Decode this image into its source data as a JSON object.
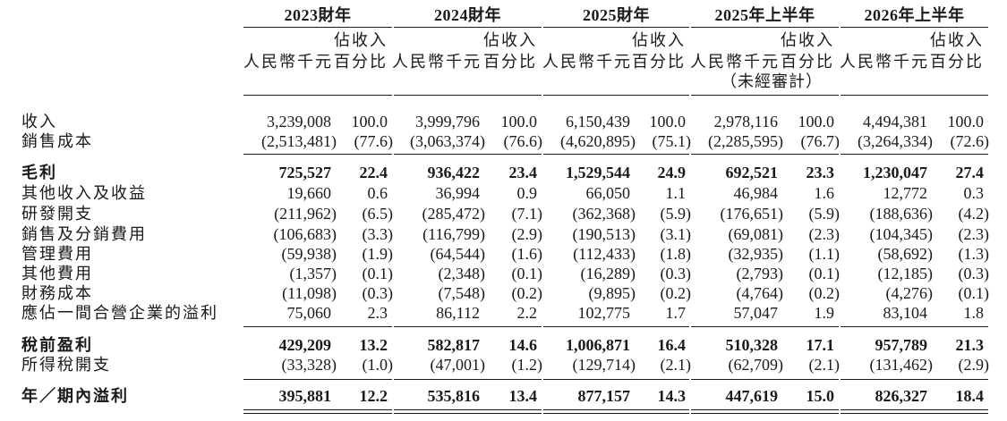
{
  "periods": [
    "2023財年",
    "2024財年",
    "2025財年",
    "2025年上半年",
    "2026年上半年"
  ],
  "col_headers": {
    "amount": "人民幣千元",
    "pct": "佔收入\n百分比",
    "unaudited": "（未經審計）"
  },
  "rows": [
    {
      "label": "收入",
      "bold": false,
      "values": [
        "3,239,008",
        "100.0",
        "3,999,796",
        "100.0",
        "6,150,439",
        "100.0",
        "2,978,116",
        "100.0",
        "4,494,381",
        "100.0"
      ]
    },
    {
      "label": "銷售成本",
      "bold": false,
      "values": [
        "(2,513,481)",
        "(77.6)",
        "(3,063,374)",
        "(76.6)",
        "(4,620,895)",
        "(75.1)",
        "(2,285,595)",
        "(76.7)",
        "(3,264,334)",
        "(72.6)"
      ]
    },
    {
      "label": "毛利",
      "bold": true,
      "values": [
        "725,527",
        "22.4",
        "936,422",
        "23.4",
        "1,529,544",
        "24.9",
        "692,521",
        "23.3",
        "1,230,047",
        "27.4"
      ]
    },
    {
      "label": "其他收入及收益",
      "bold": false,
      "values": [
        "19,660",
        "0.6",
        "36,994",
        "0.9",
        "66,050",
        "1.1",
        "46,984",
        "1.6",
        "12,772",
        "0.3"
      ]
    },
    {
      "label": "研發開支",
      "bold": false,
      "values": [
        "(211,962)",
        "(6.5)",
        "(285,472)",
        "(7.1)",
        "(362,368)",
        "(5.9)",
        "(176,651)",
        "(5.9)",
        "(188,636)",
        "(4.2)"
      ]
    },
    {
      "label": "銷售及分銷費用",
      "bold": false,
      "values": [
        "(106,683)",
        "(3.3)",
        "(116,799)",
        "(2.9)",
        "(190,513)",
        "(3.1)",
        "(69,081)",
        "(2.3)",
        "(104,345)",
        "(2.3)"
      ]
    },
    {
      "label": "管理費用",
      "bold": false,
      "values": [
        "(59,938)",
        "(1.9)",
        "(64,544)",
        "(1.6)",
        "(112,433)",
        "(1.8)",
        "(32,935)",
        "(1.1)",
        "(58,692)",
        "(1.3)"
      ]
    },
    {
      "label": "其他費用",
      "bold": false,
      "values": [
        "(1,357)",
        "(0.1)",
        "(2,348)",
        "(0.1)",
        "(16,289)",
        "(0.3)",
        "(2,793)",
        "(0.1)",
        "(12,185)",
        "(0.3)"
      ]
    },
    {
      "label": "財務成本",
      "bold": false,
      "values": [
        "(11,098)",
        "(0.3)",
        "(7,548)",
        "(0.2)",
        "(9,895)",
        "(0.2)",
        "(4,764)",
        "(0.2)",
        "(4,276)",
        "(0.1)"
      ]
    },
    {
      "label": "應佔一間合營企業的溢利",
      "bold": false,
      "values": [
        "75,060",
        "2.3",
        "86,112",
        "2.2",
        "102,775",
        "1.7",
        "57,047",
        "1.9",
        "83,104",
        "1.8"
      ]
    },
    {
      "label": "稅前盈利",
      "bold": true,
      "values": [
        "429,209",
        "13.2",
        "582,817",
        "14.6",
        "1,006,871",
        "16.4",
        "510,328",
        "17.1",
        "957,789",
        "21.3"
      ]
    },
    {
      "label": "所得稅開支",
      "bold": false,
      "values": [
        "(33,328)",
        "(1.0)",
        "(47,001)",
        "(1.2)",
        "(129,714)",
        "(2.1)",
        "(62,709)",
        "(2.1)",
        "(131,462)",
        "(2.9)"
      ]
    },
    {
      "label": "年／期內溢利",
      "bold": true,
      "values": [
        "395,881",
        "12.2",
        "535,816",
        "13.4",
        "877,157",
        "14.3",
        "447,619",
        "15.0",
        "826,327",
        "18.4"
      ]
    }
  ]
}
